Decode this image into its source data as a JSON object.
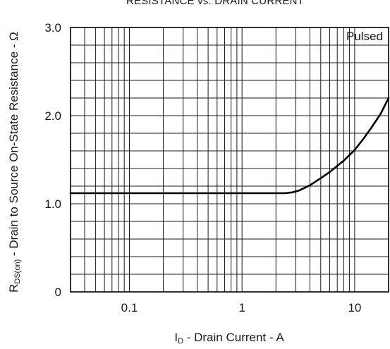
{
  "chart_data": {
    "type": "line",
    "title": "RESISTANCE vs. DRAIN CURRENT",
    "xlabel": "ID - Drain Current - A",
    "xlabel_parts": {
      "main": "I",
      "sub": "D",
      "rest": " - Drain Current - A"
    },
    "ylabel": "RDS(on) - Drain to Source On-State Resistance - Ω",
    "ylabel_parts": {
      "main": "R",
      "sub": "DS(on)",
      "rest": " - Drain to Source On-State Resistance - Ω"
    },
    "x_scale": "log",
    "xlim": [
      0.03,
      20
    ],
    "ylim": [
      0,
      3.0
    ],
    "x_ticks": [
      {
        "value": 0.1,
        "label": "0.1"
      },
      {
        "value": 1,
        "label": "1"
      },
      {
        "value": 10,
        "label": "10"
      }
    ],
    "y_ticks": [
      {
        "value": 0,
        "label": "0"
      },
      {
        "value": 1.0,
        "label": "1.0"
      },
      {
        "value": 2.0,
        "label": "2.0"
      },
      {
        "value": 3.0,
        "label": "3.0"
      }
    ],
    "grid": true,
    "annotation": "Pulsed",
    "series": [
      {
        "x": [
          0.03,
          0.1,
          0.5,
          1.0,
          2.0,
          2.4,
          2.8,
          3.2,
          4.0,
          5.0,
          6.0,
          8.0,
          10.0,
          12.0,
          14.0,
          17.0,
          20.0
        ],
        "values": [
          1.12,
          1.12,
          1.12,
          1.12,
          1.12,
          1.12,
          1.13,
          1.15,
          1.21,
          1.29,
          1.36,
          1.49,
          1.61,
          1.74,
          1.86,
          2.02,
          2.2
        ]
      }
    ]
  }
}
